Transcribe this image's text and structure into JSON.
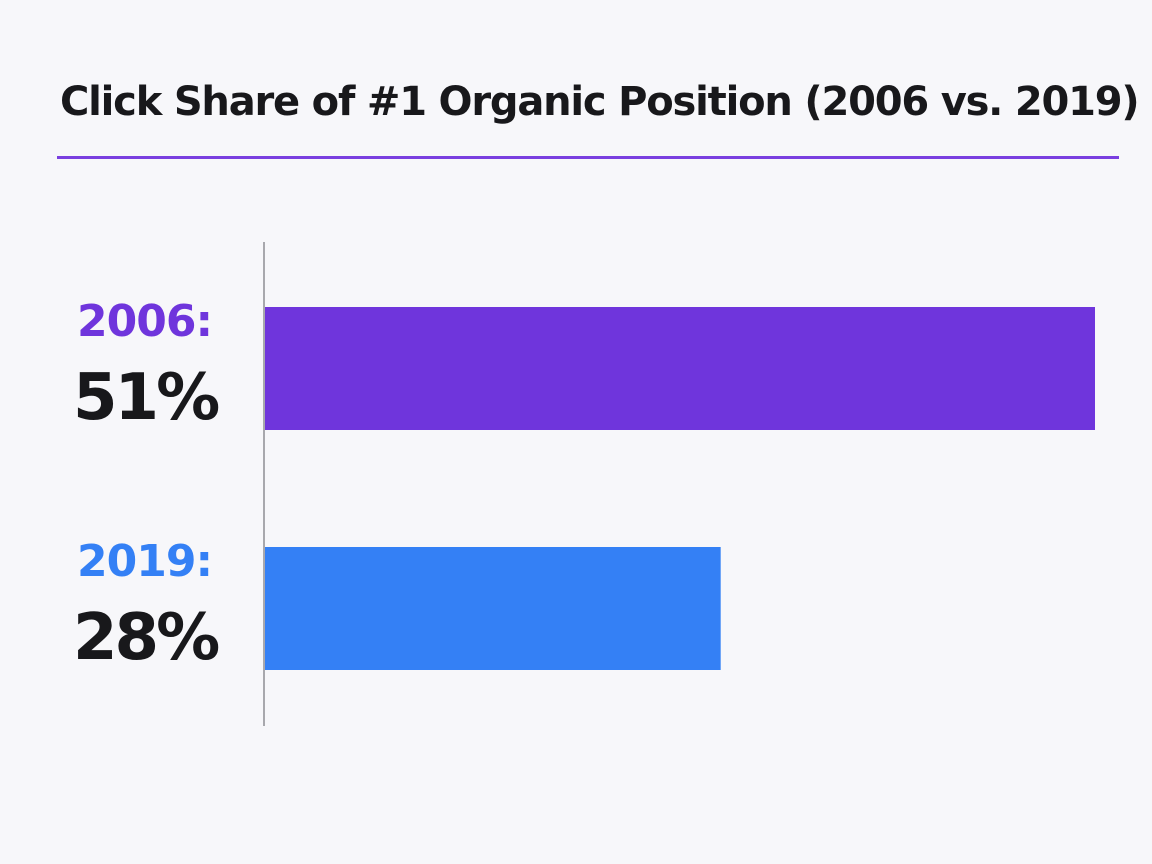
{
  "chart_data": {
    "type": "bar",
    "orientation": "horizontal",
    "title": "Click Share of #1 Organic Position (2006 vs. 2019)",
    "categories": [
      "2006:",
      "2019:"
    ],
    "values": [
      51,
      28
    ],
    "value_labels": [
      "51%",
      "28%"
    ],
    "xlim": [
      0,
      51
    ],
    "grid": false,
    "legend": "none",
    "colors": [
      "#6f35dc",
      "#3480f5"
    ]
  }
}
